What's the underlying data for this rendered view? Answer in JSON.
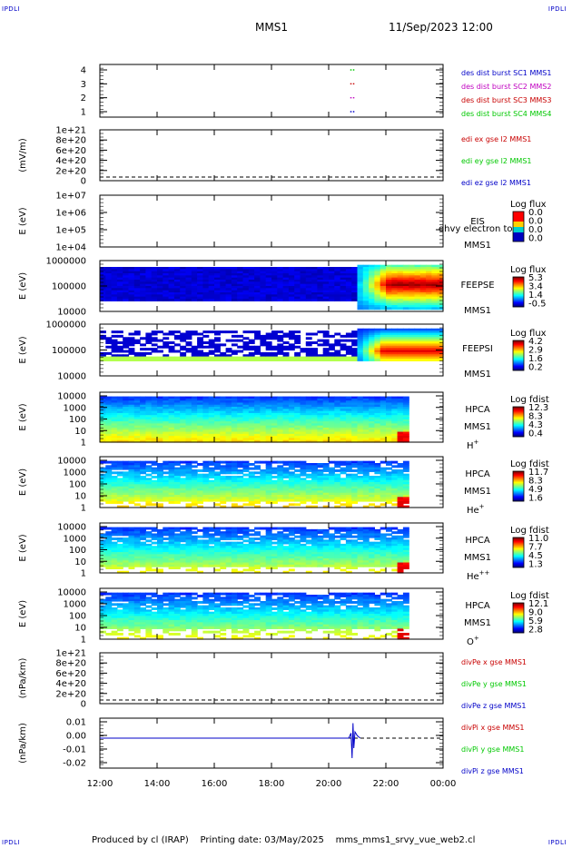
{
  "header": {
    "corner_tl": "IPDLI",
    "corner_tr": "IPDLI",
    "corner_bl": "IPDLI",
    "corner_br": "IPDLI",
    "title": "MMS1",
    "datetime": "11/Sep/2023 12:00"
  },
  "footer": {
    "produced": "Produced by cl (IRAP)",
    "printing": "Printing date: 03/May/2025",
    "script": "mms_mms1_srvy_vue_web2.cl"
  },
  "colors": {
    "blue": "#0000c8",
    "magenta": "#c000c0",
    "red": "#c80000",
    "green": "#00c800"
  },
  "chart_data": [
    {
      "id": "burst",
      "type": "scatter",
      "yticks": [
        "4",
        "3",
        "2",
        "1"
      ],
      "ylim": [
        0.5,
        4.5
      ],
      "legend": [
        {
          "text": "des dist burst SC1 MMS1",
          "color": "#0000c8"
        },
        {
          "text": "des dist burst SC2 MMS2",
          "color": "#c000c0"
        },
        {
          "text": "des dist burst SC3 MMS3",
          "color": "#c80000"
        },
        {
          "text": "des dist burst SC4 MMS4",
          "color": "#00c800"
        }
      ],
      "points": [
        {
          "x": 20.85,
          "y": 4,
          "color": "#00c800"
        },
        {
          "x": 20.85,
          "y": 3,
          "color": "#c80000"
        },
        {
          "x": 20.85,
          "y": 2,
          "color": "#c000c0"
        },
        {
          "x": 20.85,
          "y": 1,
          "color": "#0000c8"
        }
      ]
    },
    {
      "id": "edi",
      "type": "line",
      "ylabel": "(mV/m)",
      "yticks": [
        "1e+21",
        "8e+20",
        "6e+20",
        "4e+20",
        "2e+20",
        "0"
      ],
      "ylim": [
        0,
        1e+21
      ],
      "legend": [
        {
          "text": "edi ex gse l2 MMS1",
          "color": "#c80000"
        },
        {
          "text": "edi ey gse l2 MMS1",
          "color": "#00c800"
        },
        {
          "text": "edi ez gse l2 MMS1",
          "color": "#0000c8"
        }
      ]
    },
    {
      "id": "eis",
      "type": "heatmap",
      "ylabel": "E (eV)",
      "yticks": [
        "1e+07",
        "1e+06",
        "1e+05",
        "1e+04"
      ],
      "ylim": [
        10000.0,
        10000000.0
      ],
      "log": true,
      "inst": [
        "EIS",
        "MMS1"
      ],
      "overlay": "ohvy electron tof",
      "cbar": {
        "title": "Log flux",
        "ticks": [
          "0.0",
          "0.0",
          "0.0",
          "0.0"
        ]
      }
    },
    {
      "id": "feepse",
      "type": "heatmap",
      "ylabel": "E (eV)",
      "yticks": [
        "1000000",
        "100000",
        "10000"
      ],
      "ylim": [
        10000.0,
        1000000.0
      ],
      "log": true,
      "inst": [
        "FEEPSE",
        "MMS1"
      ],
      "cbar": {
        "title": "Log flux",
        "ticks": [
          "5.3",
          "3.4",
          "1.4",
          "-0.5"
        ]
      }
    },
    {
      "id": "feepsi",
      "type": "heatmap",
      "ylabel": "E (eV)",
      "yticks": [
        "1000000",
        "100000",
        "10000"
      ],
      "ylim": [
        10000.0,
        1000000.0
      ],
      "log": true,
      "inst": [
        "FEEPSI",
        "MMS1"
      ],
      "cbar": {
        "title": "Log flux",
        "ticks": [
          "4.2",
          "2.9",
          "1.6",
          "0.2"
        ]
      }
    },
    {
      "id": "hpca_h",
      "type": "heatmap",
      "ylabel": "E (eV)",
      "yticks": [
        "10000",
        "1000",
        "100",
        "10",
        "1"
      ],
      "ylim": [
        1,
        40000.0
      ],
      "log": true,
      "inst": [
        "HPCA",
        "MMS1"
      ],
      "species": "H",
      "charge": "+",
      "cbar": {
        "title": "Log fdist",
        "ticks": [
          "12.3",
          "8.3",
          "4.3",
          "0.4"
        ]
      }
    },
    {
      "id": "hpca_he",
      "type": "heatmap",
      "ylabel": "E (eV)",
      "yticks": [
        "10000",
        "1000",
        "100",
        "10",
        "1"
      ],
      "ylim": [
        1,
        40000.0
      ],
      "log": true,
      "inst": [
        "HPCA",
        "MMS1"
      ],
      "species": "He",
      "charge": "+",
      "cbar": {
        "title": "Log fdist",
        "ticks": [
          "11.7",
          "8.3",
          "4.9",
          "1.6"
        ]
      }
    },
    {
      "id": "hpca_hepp",
      "type": "heatmap",
      "ylabel": "E (eV)",
      "yticks": [
        "10000",
        "1000",
        "100",
        "10",
        "1"
      ],
      "ylim": [
        1,
        40000.0
      ],
      "log": true,
      "inst": [
        "HPCA",
        "MMS1"
      ],
      "species": "He",
      "charge": "++",
      "cbar": {
        "title": "Log fdist",
        "ticks": [
          "11.0",
          "7.7",
          "4.5",
          "1.3"
        ]
      }
    },
    {
      "id": "hpca_o",
      "type": "heatmap",
      "ylabel": "E (eV)",
      "yticks": [
        "10000",
        "1000",
        "100",
        "10",
        "1"
      ],
      "ylim": [
        1,
        40000.0
      ],
      "log": true,
      "inst": [
        "HPCA",
        "MMS1"
      ],
      "species": "O",
      "charge": "+",
      "cbar": {
        "title": "Log fdist",
        "ticks": [
          "12.1",
          "9.0",
          "5.9",
          "2.8"
        ]
      }
    },
    {
      "id": "divpe",
      "type": "line",
      "ylabel": "(nPa/km)",
      "yticks": [
        "1e+21",
        "8e+20",
        "6e+20",
        "4e+20",
        "2e+20",
        "0"
      ],
      "ylim": [
        0,
        1e+21
      ],
      "legend": [
        {
          "text": "divPe x gse MMS1",
          "color": "#c80000"
        },
        {
          "text": "divPe y gse MMS1",
          "color": "#00c800"
        },
        {
          "text": "divPe z gse MMS1",
          "color": "#0000c8"
        }
      ]
    },
    {
      "id": "divpi",
      "type": "line",
      "ylabel": "(nPa/km)",
      "yticks": [
        "0.01",
        "0.00",
        "-0.01",
        "-0.02"
      ],
      "ylim": [
        -0.024,
        0.016
      ],
      "legend": [
        {
          "text": "divPi x gse MMS1",
          "color": "#c80000"
        },
        {
          "text": "divPi y gse MMS1",
          "color": "#00c800"
        },
        {
          "text": "divPi z gse MMS1",
          "color": "#0000c8"
        }
      ],
      "series": [
        {
          "name": "z",
          "x": [
            12,
            20.7,
            20.78,
            20.82,
            20.85,
            20.88,
            20.92,
            21.0,
            21.1
          ],
          "y": [
            0,
            0,
            0.004,
            -0.016,
            0.012,
            -0.008,
            0.005,
            0.002,
            0
          ]
        }
      ]
    }
  ],
  "xaxis": {
    "ticks": [
      "12:00",
      "14:00",
      "16:00",
      "18:00",
      "20:00",
      "22:00",
      "00:00"
    ],
    "range_hours": [
      12,
      24
    ]
  }
}
